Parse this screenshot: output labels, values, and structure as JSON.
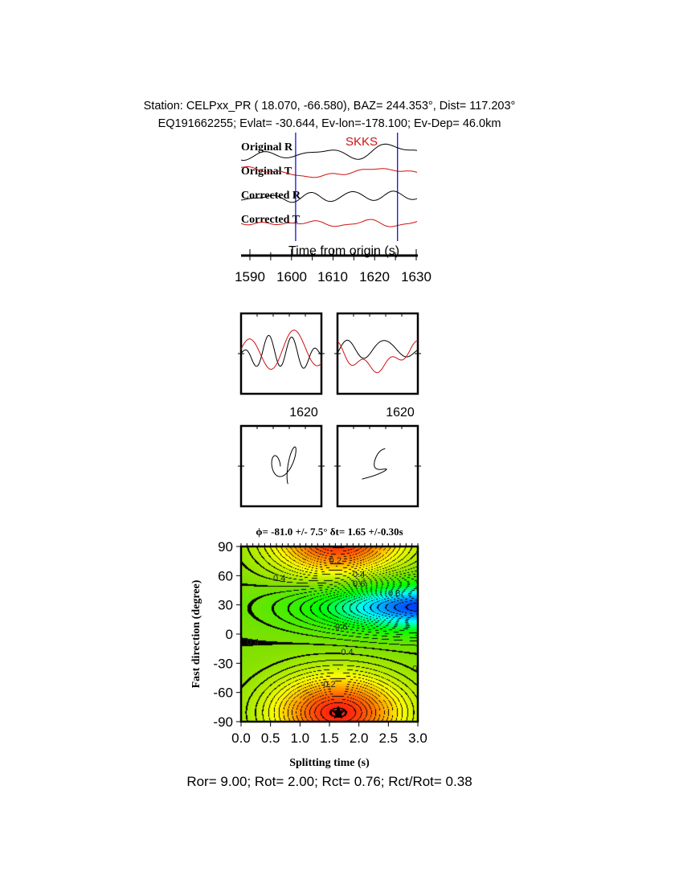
{
  "header": {
    "station_line": "Station: CELPxx_PR (  18.070,  -66.580), BAZ=  244.353°, Dist=  117.203°",
    "event_line": "EQ191662255; Evlat= -30.644, Ev-lon=-178.100; Ev-Dep= 46.0km"
  },
  "traces": {
    "labels": [
      "Original R",
      "Original T",
      "Corrected R",
      "Corrected T"
    ],
    "phase_label": "SKKS",
    "xlabel": "Time from origin (s)",
    "xticks": [
      "1590",
      "1600",
      "1610",
      "1620",
      "1630"
    ],
    "xlim": [
      1588,
      1631
    ],
    "window": [
      1601,
      1625.5
    ],
    "colors": {
      "radial": "#000000",
      "transverse": "#d01010",
      "window": "#0000cc"
    }
  },
  "particle_motion": {
    "tick_label_left": "1620",
    "tick_label_right": "1620"
  },
  "chart_data": {
    "type": "heatmap",
    "title": "ϕ= -81.0 +/- 7.5° δt= 1.65 +/-0.30s",
    "xlabel": "Splitting time (s)",
    "ylabel": "Fast direction (degree)",
    "xlim": [
      0,
      3
    ],
    "ylim": [
      -90,
      90
    ],
    "xticks": [
      "0.0",
      "0.5",
      "1.0",
      "1.5",
      "2.0",
      "2.5",
      "3.0"
    ],
    "yticks": [
      "90",
      "60",
      "30",
      "0",
      "-30",
      "-60",
      "-90"
    ],
    "best_fit": {
      "phi": -81.0,
      "phi_err": 7.5,
      "dt": 1.65,
      "dt_err": 0.3
    },
    "contour_labels": [
      {
        "text": "0.2",
        "t": 1.6,
        "phi": 76
      },
      {
        "text": "0.4",
        "t": 0.65,
        "phi": 58
      },
      {
        "text": "0.4",
        "t": 2.0,
        "phi": 62
      },
      {
        "text": "0.6",
        "t": 2.0,
        "phi": 52
      },
      {
        "text": "0.8",
        "t": 2.6,
        "phi": 42
      },
      {
        "text": "0.6",
        "t": 1.7,
        "phi": 8
      },
      {
        "text": "0.4",
        "t": 0.2,
        "phi": -8
      },
      {
        "text": "0.4",
        "t": 1.8,
        "phi": -18
      },
      {
        "text": "0.2",
        "t": 1.5,
        "phi": -51
      },
      {
        "text": "0",
        "t": 2.95,
        "phi": -35
      }
    ],
    "colormap": [
      "#ff1010",
      "#ff8000",
      "#ffff00",
      "#80e000",
      "#00ff00",
      "#00ffff",
      "#0030ff"
    ]
  },
  "footer": {
    "ratios": "Ror= 9.00; Rot= 2.00; Rct= 0.76; Rct/Rot= 0.38"
  }
}
